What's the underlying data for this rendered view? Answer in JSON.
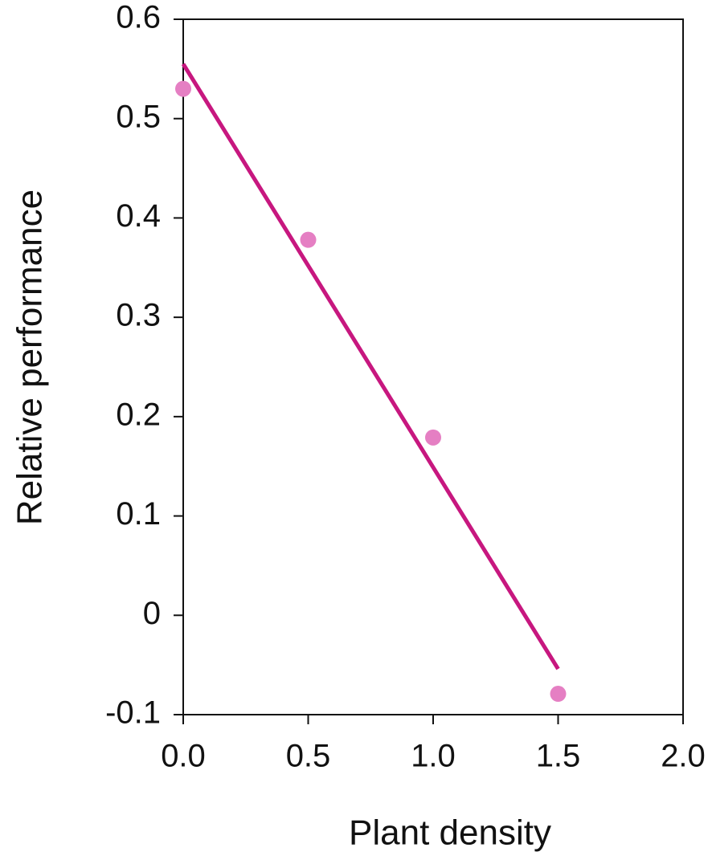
{
  "chart_data": {
    "type": "scatter",
    "x_label": "Plant density",
    "y_label": "Relative performance",
    "xlim": [
      0,
      2.0
    ],
    "ylim": [
      -0.1,
      0.6
    ],
    "xticks": [
      {
        "value": 0,
        "label": "0.0"
      },
      0.5,
      {
        "value": 1,
        "label": "1.0"
      },
      1.5,
      {
        "value": 2,
        "label": "2.0"
      }
    ],
    "yticks": [
      -0.1,
      0,
      0.1,
      0.2,
      0.3,
      0.4,
      0.5,
      0.6
    ],
    "points": {
      "x": [
        0,
        0.5,
        1.0,
        1.5
      ],
      "values": [
        0.53,
        0.378,
        0.179,
        -0.079
      ],
      "color": "#e57fc3"
    },
    "fit_line": {
      "x": [
        0,
        1.5
      ],
      "values": [
        0.555,
        -0.054
      ],
      "color": "#c7177f"
    }
  }
}
